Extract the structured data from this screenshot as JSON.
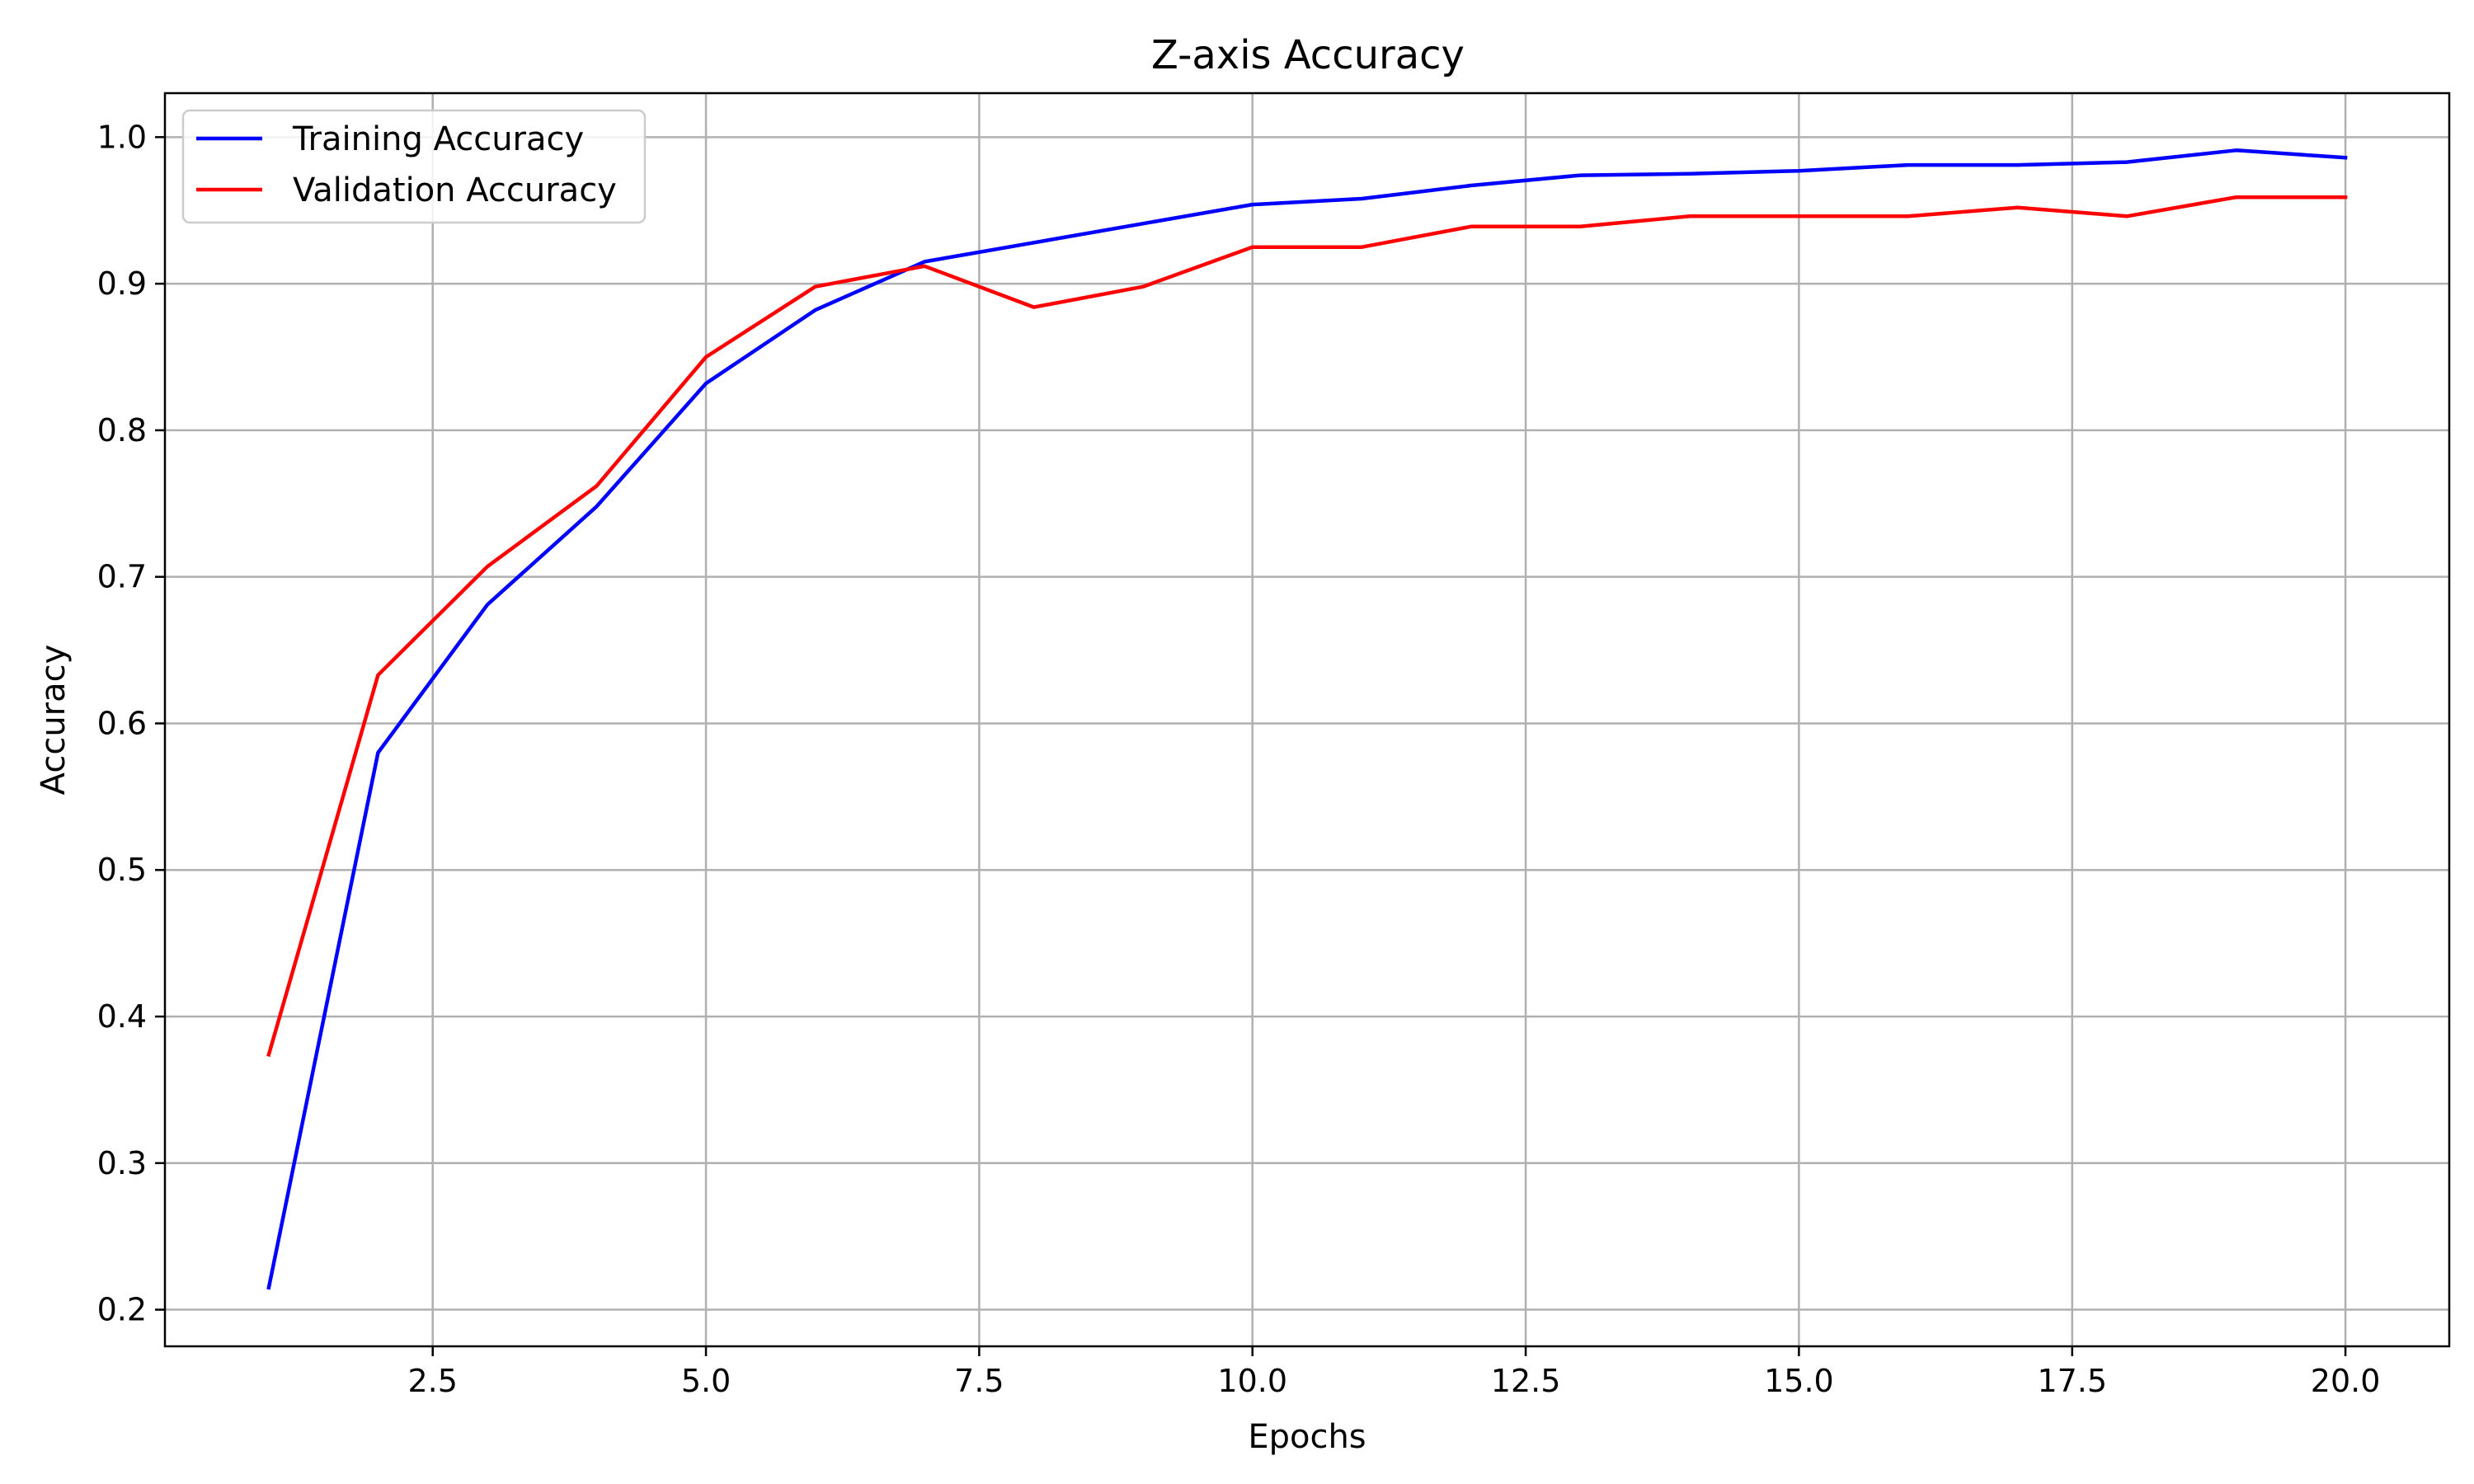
{
  "chart_data": {
    "type": "line",
    "title": "Z-axis Accuracy",
    "xlabel": "Epochs",
    "ylabel": "Accuracy",
    "xlim": [
      0.05,
      20.95
    ],
    "ylim": [
      0.175,
      1.03
    ],
    "xticks": [
      2.5,
      5.0,
      7.5,
      10.0,
      12.5,
      15.0,
      17.5,
      20.0
    ],
    "xtick_labels": [
      "2.5",
      "5.0",
      "7.5",
      "10.0",
      "12.5",
      "15.0",
      "17.5",
      "20.0"
    ],
    "yticks": [
      0.2,
      0.3,
      0.4,
      0.5,
      0.6,
      0.7,
      0.8,
      0.9,
      1.0
    ],
    "ytick_labels": [
      "0.2",
      "0.3",
      "0.4",
      "0.5",
      "0.6",
      "0.7",
      "0.8",
      "0.9",
      "1.0"
    ],
    "grid": true,
    "legend_position": "top-left",
    "x": [
      1,
      2,
      3,
      4,
      5,
      6,
      7,
      8,
      9,
      10,
      11,
      12,
      13,
      14,
      15,
      16,
      17,
      18,
      19,
      20
    ],
    "series": [
      {
        "name": "Training Accuracy",
        "color": "#0000ff",
        "values": [
          0.215,
          0.58,
          0.681,
          0.748,
          0.832,
          0.882,
          0.915,
          0.928,
          0.941,
          0.954,
          0.958,
          0.967,
          0.974,
          0.975,
          0.977,
          0.981,
          0.981,
          0.983,
          0.991,
          0.986
        ]
      },
      {
        "name": "Validation Accuracy",
        "color": "#ff0000",
        "values": [
          0.374,
          0.633,
          0.707,
          0.762,
          0.85,
          0.898,
          0.912,
          0.884,
          0.898,
          0.925,
          0.925,
          0.939,
          0.939,
          0.946,
          0.946,
          0.946,
          0.952,
          0.946,
          0.959,
          0.959
        ]
      }
    ]
  }
}
